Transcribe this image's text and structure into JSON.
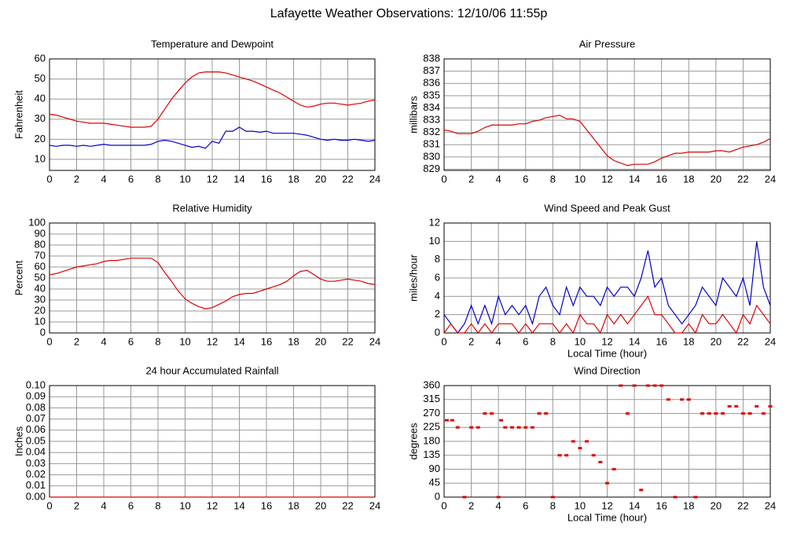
{
  "title": "Lafayette Weather Observations: 12/10/06 11:55p",
  "chart_data": [
    {
      "type": "line",
      "title": "Temperature and Dewpoint",
      "ylabel": "Fahrenheit",
      "x": [
        0,
        0.5,
        1,
        1.5,
        2,
        2.5,
        3,
        3.5,
        4,
        4.5,
        5,
        5.5,
        6,
        6.5,
        7,
        7.5,
        8,
        8.5,
        9,
        9.5,
        10,
        10.5,
        11,
        11.5,
        12,
        12.5,
        13,
        13.5,
        14,
        14.5,
        15,
        15.5,
        16,
        16.5,
        17,
        17.5,
        18,
        18.5,
        19,
        19.5,
        20,
        20.5,
        21,
        21.5,
        22,
        22.5,
        23,
        23.5,
        24
      ],
      "series": [
        {
          "color": "#dd0000",
          "values": [
            32.5,
            32,
            31,
            30,
            29,
            28.5,
            28,
            28,
            28,
            27.5,
            27,
            26.5,
            26,
            26,
            26,
            26.5,
            30,
            35,
            40,
            44,
            48,
            51,
            53,
            53.5,
            53.5,
            53.5,
            53,
            52,
            51,
            50,
            49,
            47.5,
            46,
            44.5,
            43,
            41,
            39,
            37,
            36,
            36.5,
            37.5,
            38,
            38,
            37.5,
            37,
            37.5,
            38,
            39,
            39.5
          ]
        },
        {
          "color": "#0000cc",
          "values": [
            17,
            16.5,
            17,
            17,
            16.5,
            17,
            16.5,
            17,
            17.5,
            17,
            17,
            17,
            17,
            17,
            17,
            17.5,
            19,
            19.5,
            19,
            18,
            17,
            16,
            16.5,
            15.5,
            19,
            18,
            24,
            24,
            26,
            24,
            24,
            23.5,
            24,
            23,
            23,
            23,
            23,
            22.5,
            22,
            21,
            20,
            19.5,
            20,
            19.5,
            19.5,
            20,
            19.5,
            19,
            19.5
          ]
        }
      ],
      "xlim": [
        0,
        24
      ],
      "xticks": [
        0,
        2,
        4,
        6,
        8,
        10,
        12,
        14,
        16,
        18,
        20,
        22,
        24
      ],
      "ylim": [
        4.5,
        60
      ],
      "yticks": [
        10,
        20,
        30,
        40,
        50,
        60
      ],
      "grid": true
    },
    {
      "type": "line",
      "title": "Air Pressure",
      "ylabel": "millibars",
      "x": [
        0,
        0.5,
        1,
        1.5,
        2,
        2.5,
        3,
        3.5,
        4,
        4.5,
        5,
        5.5,
        6,
        6.5,
        7,
        7.5,
        8,
        8.5,
        9,
        9.5,
        10,
        10.5,
        11,
        11.5,
        12,
        12.5,
        13,
        13.5,
        14,
        14.5,
        15,
        15.5,
        16,
        16.5,
        17,
        17.5,
        18,
        18.5,
        19,
        19.5,
        20,
        20.5,
        21,
        21.5,
        22,
        22.5,
        23,
        23.5,
        24
      ],
      "series": [
        {
          "color": "#dd0000",
          "values": [
            832.2,
            832.1,
            831.9,
            831.9,
            831.9,
            832.1,
            832.4,
            832.6,
            832.6,
            832.6,
            832.6,
            832.7,
            832.7,
            832.9,
            833.0,
            833.2,
            833.3,
            833.4,
            833.1,
            833.1,
            832.9,
            832.2,
            831.5,
            830.8,
            830.1,
            829.7,
            829.5,
            829.3,
            829.4,
            829.4,
            829.4,
            829.6,
            829.9,
            830.1,
            830.3,
            830.3,
            830.4,
            830.4,
            830.4,
            830.4,
            830.5,
            830.5,
            830.4,
            830.6,
            830.8,
            830.9,
            831.0,
            831.2,
            831.5
          ]
        }
      ],
      "xlim": [
        0,
        24
      ],
      "xticks": [
        0,
        2,
        4,
        6,
        8,
        10,
        12,
        14,
        16,
        18,
        20,
        22,
        24
      ],
      "ylim": [
        828.9,
        838
      ],
      "yticks": [
        829,
        830,
        831,
        832,
        833,
        834,
        835,
        836,
        837,
        838
      ],
      "grid": true
    },
    {
      "type": "line",
      "title": "Relative Humidity",
      "ylabel": "Percent",
      "x": [
        0,
        0.5,
        1,
        1.5,
        2,
        2.5,
        3,
        3.5,
        4,
        4.5,
        5,
        5.5,
        6,
        6.5,
        7,
        7.5,
        8,
        8.5,
        9,
        9.5,
        10,
        10.5,
        11,
        11.5,
        12,
        12.5,
        13,
        13.5,
        14,
        14.5,
        15,
        15.5,
        16,
        16.5,
        17,
        17.5,
        18,
        18.5,
        19,
        19.5,
        20,
        20.5,
        21,
        21.5,
        22,
        22.5,
        23,
        23.5,
        24
      ],
      "series": [
        {
          "color": "#dd0000",
          "values": [
            53,
            54,
            56,
            58,
            60,
            61,
            62,
            63,
            65,
            66,
            66,
            67,
            68,
            68,
            68,
            68,
            64,
            55,
            47,
            38,
            31,
            27,
            24,
            22,
            23,
            26,
            29,
            33,
            35,
            36,
            36,
            38,
            40,
            42,
            44,
            47,
            52,
            56,
            57,
            53,
            49,
            47,
            47,
            48,
            49,
            48,
            47,
            45,
            44
          ]
        }
      ],
      "xlim": [
        0,
        24
      ],
      "xticks": [
        0,
        2,
        4,
        6,
        8,
        10,
        12,
        14,
        16,
        18,
        20,
        22,
        24
      ],
      "ylim": [
        0,
        100
      ],
      "yticks": [
        0,
        10,
        20,
        30,
        40,
        50,
        60,
        70,
        80,
        90,
        100
      ],
      "grid": true
    },
    {
      "type": "line",
      "title": "Wind Speed and Peak Gust",
      "ylabel": "miles/hour",
      "xlabel": "Local Time (hour)",
      "x": [
        0,
        0.5,
        1,
        1.5,
        2,
        2.5,
        3,
        3.5,
        4,
        4.5,
        5,
        5.5,
        6,
        6.5,
        7,
        7.5,
        8,
        8.5,
        9,
        9.5,
        10,
        10.5,
        11,
        11.5,
        12,
        12.5,
        13,
        13.5,
        14,
        14.5,
        15,
        15.5,
        16,
        16.5,
        17,
        17.5,
        18,
        18.5,
        19,
        19.5,
        20,
        20.5,
        21,
        21.5,
        22,
        22.5,
        23,
        23.5,
        24
      ],
      "series": [
        {
          "color": "#0000cc",
          "values": [
            2,
            1,
            0,
            1,
            3,
            1,
            3,
            1,
            4,
            2,
            3,
            2,
            3,
            1,
            4,
            5,
            3,
            2,
            5,
            3,
            5,
            4,
            4,
            3,
            5,
            4,
            5,
            5,
            4,
            6,
            9,
            5,
            6,
            3,
            2,
            1,
            2,
            3,
            5,
            4,
            3,
            6,
            5,
            4,
            6,
            3,
            10,
            5,
            3
          ]
        },
        {
          "color": "#dd0000",
          "values": [
            0,
            1,
            0,
            0,
            1,
            0,
            1,
            0,
            1,
            1,
            1,
            0,
            1,
            0,
            1,
            1,
            1,
            0,
            1,
            0,
            2,
            1,
            1,
            0,
            2,
            1,
            2,
            1,
            2,
            3,
            4,
            2,
            2,
            1,
            0,
            0,
            1,
            0,
            2,
            1,
            1,
            2,
            1,
            0,
            2,
            1,
            3,
            2,
            1
          ]
        }
      ],
      "xlim": [
        0,
        24
      ],
      "xticks": [
        0,
        2,
        4,
        6,
        8,
        10,
        12,
        14,
        16,
        18,
        20,
        22,
        24
      ],
      "ylim": [
        0,
        12
      ],
      "yticks": [
        0,
        2,
        4,
        6,
        8,
        10,
        12
      ],
      "grid": true
    },
    {
      "type": "line",
      "title": "24 hour Accumulated Rainfall",
      "ylabel": "Inches",
      "x": [
        0,
        24
      ],
      "series": [
        {
          "color": "#dd0000",
          "values": [
            0,
            0
          ]
        }
      ],
      "xlim": [
        0,
        24
      ],
      "xticks": [
        0,
        2,
        4,
        6,
        8,
        10,
        12,
        14,
        16,
        18,
        20,
        22,
        24
      ],
      "ylim": [
        0,
        0.1
      ],
      "yticks": [
        {
          "value": 0,
          "label": "0.00"
        },
        {
          "value": 0.01,
          "label": "0.01"
        },
        {
          "value": 0.02,
          "label": "0.02"
        },
        {
          "value": 0.03,
          "label": "0.03"
        },
        {
          "value": 0.04,
          "label": "0.04"
        },
        {
          "value": 0.05,
          "label": "0.05"
        },
        {
          "value": 0.06,
          "label": "0.06"
        },
        {
          "value": 0.07,
          "label": "0.07"
        },
        {
          "value": 0.08,
          "label": "0.08"
        },
        {
          "value": 0.09,
          "label": "0.09"
        },
        {
          "value": 0.1,
          "label": "0.10"
        }
      ],
      "grid": true
    },
    {
      "type": "scatter",
      "title": "Wind Direction",
      "ylabel": "degrees",
      "xlabel": "Local Time (hour)",
      "color": "#dd0000",
      "x": [
        0.2,
        0.6,
        1,
        1.5,
        2,
        2.5,
        3,
        3.5,
        4,
        4.2,
        4.5,
        5,
        5.5,
        6,
        6.5,
        7,
        7.5,
        8,
        8.5,
        9,
        9.5,
        10,
        10.5,
        11,
        11.5,
        12,
        12.5,
        13,
        13.5,
        14,
        14.5,
        15,
        15.5,
        16,
        16.5,
        17,
        17.5,
        18,
        18.5,
        19,
        19.5,
        20,
        20.5,
        21,
        21.5,
        22,
        22.5,
        23,
        23.5,
        24
      ],
      "values": [
        248,
        248,
        225,
        0,
        225,
        225,
        270,
        270,
        0,
        248,
        225,
        225,
        225,
        225,
        225,
        270,
        270,
        0,
        135,
        135,
        180,
        158,
        180,
        135,
        113,
        45,
        90,
        360,
        270,
        360,
        23,
        360,
        360,
        360,
        315,
        0,
        315,
        315,
        0,
        270,
        270,
        270,
        270,
        293,
        293,
        270,
        270,
        293,
        270,
        293
      ],
      "xlim": [
        0,
        24
      ],
      "xticks": [
        0,
        2,
        4,
        6,
        8,
        10,
        12,
        14,
        16,
        18,
        20,
        22,
        24
      ],
      "ylim": [
        0,
        360
      ],
      "yticks": [
        0,
        45,
        90,
        135,
        180,
        225,
        270,
        315,
        360
      ],
      "grid": true
    }
  ]
}
